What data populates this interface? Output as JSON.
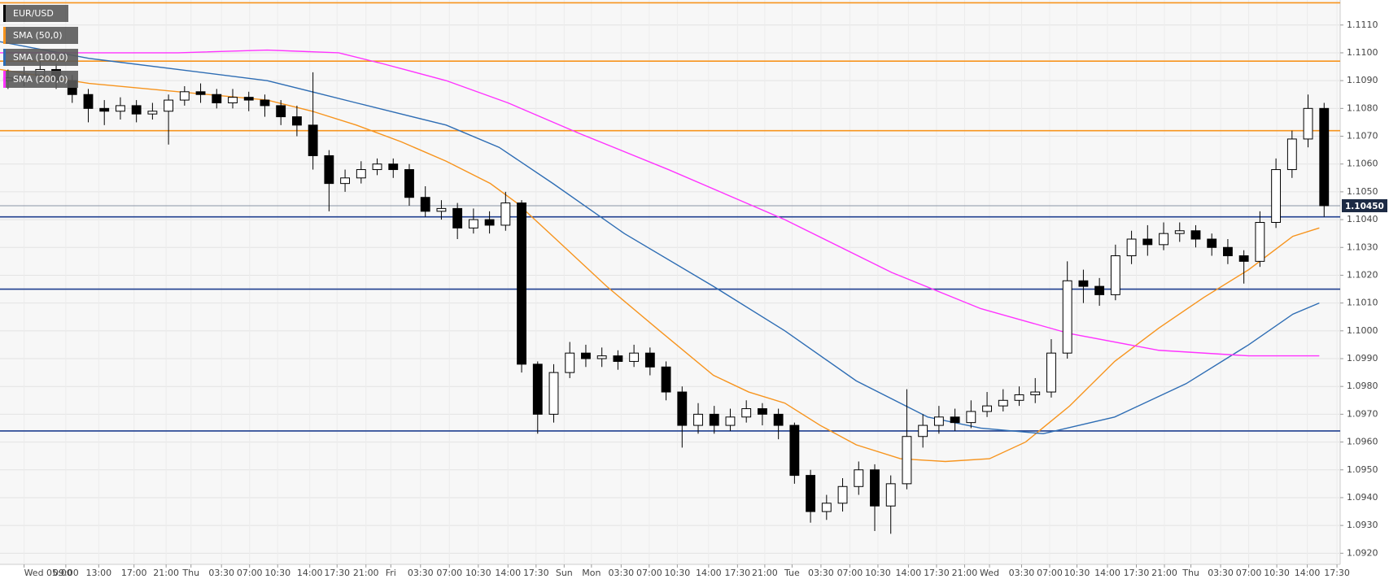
{
  "chart_data": {
    "type": "candlestick",
    "name": "EUR/USD",
    "color": "#000000",
    "x": [
      1,
      3,
      5,
      7,
      9,
      11,
      13,
      15,
      17,
      19,
      21,
      23,
      25,
      27,
      29,
      31,
      33,
      35,
      37,
      39,
      41,
      43,
      45,
      47,
      49,
      51,
      53,
      55,
      57,
      59,
      61,
      63,
      65,
      67,
      69,
      71,
      73,
      75,
      77,
      79,
      81,
      83,
      85,
      87,
      89,
      91,
      93,
      95,
      97,
      99,
      101,
      103,
      105,
      107,
      109,
      111,
      113,
      115,
      117,
      119,
      121,
      123,
      125,
      127,
      129,
      131,
      133,
      135,
      137,
      139,
      141,
      143,
      145,
      147,
      149,
      151,
      153,
      155,
      157,
      159,
      161,
      163,
      165
    ],
    "open": [
      1.109,
      1.1091,
      1.1092,
      1.1094,
      1.109,
      1.1085,
      1.108,
      1.1079,
      1.1081,
      1.1078,
      1.1079,
      1.1083,
      1.1086,
      1.1085,
      1.1082,
      1.1084,
      1.1083,
      1.1081,
      1.1077,
      1.1074,
      1.1063,
      1.1053,
      1.1055,
      1.1058,
      1.106,
      1.1058,
      1.1048,
      1.1043,
      1.1044,
      1.1037,
      1.104,
      1.1038,
      1.1046,
      1.0988,
      1.097,
      1.0985,
      1.0992,
      1.099,
      1.0991,
      1.0989,
      1.0992,
      1.0987,
      1.0978,
      1.0966,
      1.097,
      1.0966,
      1.0969,
      1.0972,
      1.097,
      1.0966,
      1.0948,
      1.0935,
      1.0938,
      1.0944,
      1.095,
      1.0937,
      1.0945,
      1.0962,
      1.0966,
      1.0969,
      1.0967,
      1.0971,
      1.0973,
      1.0975,
      1.0977,
      1.0978,
      1.0992,
      1.1018,
      1.1016,
      1.1013,
      1.1027,
      1.1033,
      1.1031,
      1.1035,
      1.1036,
      1.1033,
      1.103,
      1.1027,
      1.1025,
      1.1039,
      1.1058,
      1.1069,
      1.108
    ],
    "high": [
      1.1094,
      1.1095,
      1.1097,
      1.1096,
      1.1092,
      1.1087,
      1.1083,
      1.1084,
      1.1083,
      1.1082,
      1.1085,
      1.1088,
      1.1089,
      1.1087,
      1.1087,
      1.1086,
      1.1085,
      1.1083,
      1.1081,
      1.1093,
      1.1065,
      1.1058,
      1.1061,
      1.1062,
      1.1062,
      1.106,
      1.1052,
      1.1047,
      1.1046,
      1.1044,
      1.1043,
      1.105,
      1.1047,
      1.0989,
      1.0988,
      1.0996,
      1.0995,
      1.0994,
      1.0993,
      1.0995,
      1.0994,
      1.0989,
      1.098,
      1.0974,
      1.0973,
      1.0972,
      1.0975,
      1.0974,
      1.0972,
      1.0967,
      1.095,
      1.0941,
      1.0947,
      1.0953,
      1.0952,
      1.0948,
      1.0979,
      1.097,
      1.0973,
      1.0972,
      1.0975,
      1.0978,
      1.0979,
      1.098,
      1.0983,
      1.0997,
      1.1025,
      1.1022,
      1.1019,
      1.1031,
      1.1036,
      1.1038,
      1.1039,
      1.1039,
      1.1038,
      1.1035,
      1.1033,
      1.1029,
      1.1043,
      1.1062,
      1.1072,
      1.1085,
      1.1082
    ],
    "low": [
      1.1087,
      1.1088,
      1.1089,
      1.1087,
      1.1082,
      1.1075,
      1.1074,
      1.1076,
      1.1075,
      1.1076,
      1.1067,
      1.1081,
      1.1082,
      1.108,
      1.108,
      1.1079,
      1.1077,
      1.1074,
      1.107,
      1.1058,
      1.1043,
      1.105,
      1.1053,
      1.1056,
      1.1055,
      1.1045,
      1.1041,
      1.104,
      1.1033,
      1.1035,
      1.1035,
      1.1036,
      1.0985,
      1.0963,
      1.0967,
      1.0983,
      1.0987,
      1.0987,
      1.0986,
      1.0987,
      1.0984,
      1.0975,
      1.0958,
      1.0963,
      1.0963,
      1.0964,
      1.0967,
      1.0966,
      1.0961,
      1.0945,
      1.0931,
      1.0932,
      1.0935,
      1.0941,
      1.0928,
      1.0927,
      1.0943,
      1.0958,
      1.0963,
      1.0964,
      1.0965,
      1.0969,
      1.0971,
      1.0973,
      1.0974,
      1.0976,
      1.099,
      1.101,
      1.1009,
      1.1011,
      1.1024,
      1.1027,
      1.1029,
      1.1032,
      1.103,
      1.1027,
      1.1024,
      1.1017,
      1.1023,
      1.1037,
      1.1055,
      1.1066,
      1.1041
    ],
    "close": [
      1.1091,
      1.1092,
      1.1094,
      1.109,
      1.1085,
      1.108,
      1.1079,
      1.1081,
      1.1078,
      1.1079,
      1.1083,
      1.1086,
      1.1085,
      1.1082,
      1.1084,
      1.1083,
      1.1081,
      1.1077,
      1.1074,
      1.1063,
      1.1053,
      1.1055,
      1.1058,
      1.106,
      1.1058,
      1.1048,
      1.1043,
      1.1044,
      1.1037,
      1.104,
      1.1038,
      1.1046,
      1.0988,
      1.097,
      1.0985,
      1.0992,
      1.099,
      1.0991,
      1.0989,
      1.0992,
      1.0987,
      1.0978,
      1.0966,
      1.097,
      1.0966,
      1.0969,
      1.0972,
      1.097,
      1.0966,
      1.0948,
      1.0935,
      1.0938,
      1.0944,
      1.095,
      1.0937,
      1.0945,
      1.0962,
      1.0966,
      1.0969,
      1.0967,
      1.0971,
      1.0973,
      1.0975,
      1.0977,
      1.0978,
      1.0992,
      1.1018,
      1.1016,
      1.1013,
      1.1027,
      1.1033,
      1.1031,
      1.1035,
      1.1036,
      1.1033,
      1.103,
      1.1027,
      1.1025,
      1.1039,
      1.1058,
      1.1069,
      1.108,
      1.1045
    ],
    "series": [
      {
        "name": "SMA (50,0)",
        "color": "#f7941d",
        "x": [
          0,
          11.1,
          22.2,
          33.3,
          38.9,
          44.4,
          50,
          55.6,
          61.1,
          64.4,
          68.9,
          75.6,
          82.2,
          88.9,
          93.3,
          97.8,
          102.2,
          106.7,
          112.2,
          117.8,
          123.3,
          127.8,
          133.3,
          138.9,
          144.4,
          150,
          155.6,
          161.1,
          164.4
        ],
        "values": [
          1.1094,
          1.1089,
          1.1086,
          1.1083,
          1.1079,
          1.1074,
          1.1068,
          1.1061,
          1.1053,
          1.1046,
          1.1034,
          1.1016,
          1.1,
          1.0984,
          1.0978,
          1.0974,
          1.0966,
          1.0959,
          1.0954,
          1.0953,
          1.0954,
          1.096,
          1.0973,
          1.0989,
          1.1001,
          1.1012,
          1.1022,
          1.1034,
          1.1037
        ]
      },
      {
        "name": "SMA (100,0)",
        "color": "#2e6db4",
        "x": [
          0,
          11.1,
          22.2,
          33.3,
          44.4,
          55.6,
          62.2,
          68.9,
          77.8,
          88.9,
          97.8,
          106.7,
          115.6,
          122.2,
          130,
          138.9,
          147.8,
          155.6,
          161.1,
          164.4
        ],
        "values": [
          1.1104,
          1.1098,
          1.1094,
          1.109,
          1.1082,
          1.1074,
          1.1066,
          1.1053,
          1.1035,
          1.1016,
          1.1,
          1.0982,
          1.0969,
          1.0965,
          1.0963,
          1.0969,
          1.0981,
          1.0995,
          1.1006,
          1.101
        ]
      },
      {
        "name": "SMA (200,0)",
        "color": "#ff33ff",
        "x": [
          0,
          11.1,
          22.2,
          33.3,
          42.2,
          47.8,
          55.6,
          63.3,
          72.2,
          83.3,
          97.8,
          111.1,
          122.2,
          133.3,
          144.4,
          155.6,
          164.4
        ],
        "values": [
          1.11,
          1.11,
          1.11,
          1.1101,
          1.11,
          1.1096,
          1.109,
          1.1082,
          1.1071,
          1.1058,
          1.104,
          1.1021,
          1.1008,
          1.0999,
          1.0993,
          1.0991,
          1.0991
        ]
      }
    ],
    "levels": [
      {
        "value": 1.1118,
        "color": "#f7941d"
      },
      {
        "value": 1.1097,
        "color": "#f7941d"
      },
      {
        "value": 1.1072,
        "color": "#f7941d"
      },
      {
        "value": 1.1041,
        "color": "#1f3f8f"
      },
      {
        "value": 1.1015,
        "color": "#1f3f8f"
      },
      {
        "value": 1.0964,
        "color": "#1f3f8f"
      }
    ],
    "last_price": {
      "value": 1.1045,
      "label": "1.10450"
    },
    "xlim": [
      0,
      167
    ],
    "ylim": [
      1.0916,
      1.1119
    ],
    "xticks": [
      {
        "value": 3,
        "label": "Wed 05:00"
      },
      {
        "value": 8.2,
        "label": "09:00"
      },
      {
        "value": 12.3,
        "label": "13:00"
      },
      {
        "value": 16.7,
        "label": "17:00"
      },
      {
        "value": 20.7,
        "label": "21:00"
      },
      {
        "value": 23.8,
        "label": "Thu"
      },
      {
        "value": 27.6,
        "label": "03:30"
      },
      {
        "value": 31.1,
        "label": "07:00"
      },
      {
        "value": 34.6,
        "label": "10:30"
      },
      {
        "value": 38.6,
        "label": "14:00"
      },
      {
        "value": 42,
        "label": "17:30"
      },
      {
        "value": 45.6,
        "label": "21:00"
      },
      {
        "value": 48.7,
        "label": "Fri"
      },
      {
        "value": 52.4,
        "label": "03:30"
      },
      {
        "value": 56,
        "label": "07:00"
      },
      {
        "value": 59.6,
        "label": "10:30"
      },
      {
        "value": 63.3,
        "label": "14:00"
      },
      {
        "value": 66.8,
        "label": "17:30"
      },
      {
        "value": 70.3,
        "label": "Sun"
      },
      {
        "value": 73.7,
        "label": "Mon"
      },
      {
        "value": 77.4,
        "label": "03:30"
      },
      {
        "value": 80.9,
        "label": "07:00"
      },
      {
        "value": 84.4,
        "label": "10:30"
      },
      {
        "value": 88.3,
        "label": "14:00"
      },
      {
        "value": 91.9,
        "label": "17:30"
      },
      {
        "value": 95.3,
        "label": "21:00"
      },
      {
        "value": 98.7,
        "label": "Tue"
      },
      {
        "value": 102.3,
        "label": "03:30"
      },
      {
        "value": 105.9,
        "label": "07:00"
      },
      {
        "value": 109.4,
        "label": "10:30"
      },
      {
        "value": 113.2,
        "label": "14:00"
      },
      {
        "value": 116.7,
        "label": "17:30"
      },
      {
        "value": 120.2,
        "label": "21:00"
      },
      {
        "value": 123.3,
        "label": "Wed"
      },
      {
        "value": 127.3,
        "label": "03:30"
      },
      {
        "value": 130.8,
        "label": "07:00"
      },
      {
        "value": 134.2,
        "label": "10:30"
      },
      {
        "value": 138,
        "label": "14:00"
      },
      {
        "value": 141.6,
        "label": "17:30"
      },
      {
        "value": 145.1,
        "label": "21:00"
      },
      {
        "value": 148.4,
        "label": "Thu"
      },
      {
        "value": 152.1,
        "label": "03:30"
      },
      {
        "value": 155.6,
        "label": "07:00"
      },
      {
        "value": 159.1,
        "label": "10:30"
      },
      {
        "value": 162.9,
        "label": "14:00"
      },
      {
        "value": 166.6,
        "label": "17:30"
      }
    ],
    "yticks": [
      {
        "value": 1.092,
        "label": "1.0920"
      },
      {
        "value": 1.093,
        "label": "1.0930"
      },
      {
        "value": 1.094,
        "label": "1.0940"
      },
      {
        "value": 1.095,
        "label": "1.0950"
      },
      {
        "value": 1.096,
        "label": "1.0960"
      },
      {
        "value": 1.097,
        "label": "1.0970"
      },
      {
        "value": 1.098,
        "label": "1.0980"
      },
      {
        "value": 1.099,
        "label": "1.0990"
      },
      {
        "value": 1.1,
        "label": "1.1000"
      },
      {
        "value": 1.101,
        "label": "1.1010"
      },
      {
        "value": 1.102,
        "label": "1.1020"
      },
      {
        "value": 1.103,
        "label": "1.1030"
      },
      {
        "value": 1.104,
        "label": "1.1040"
      },
      {
        "value": 1.105,
        "label": "1.1050"
      },
      {
        "value": 1.106,
        "label": "1.1060"
      },
      {
        "value": 1.107,
        "label": "1.1070"
      },
      {
        "value": 1.108,
        "label": "1.1080"
      },
      {
        "value": 1.109,
        "label": "1.1090"
      },
      {
        "value": 1.11,
        "label": "1.1100"
      },
      {
        "value": 1.111,
        "label": "1.1110"
      }
    ],
    "grid": true
  }
}
